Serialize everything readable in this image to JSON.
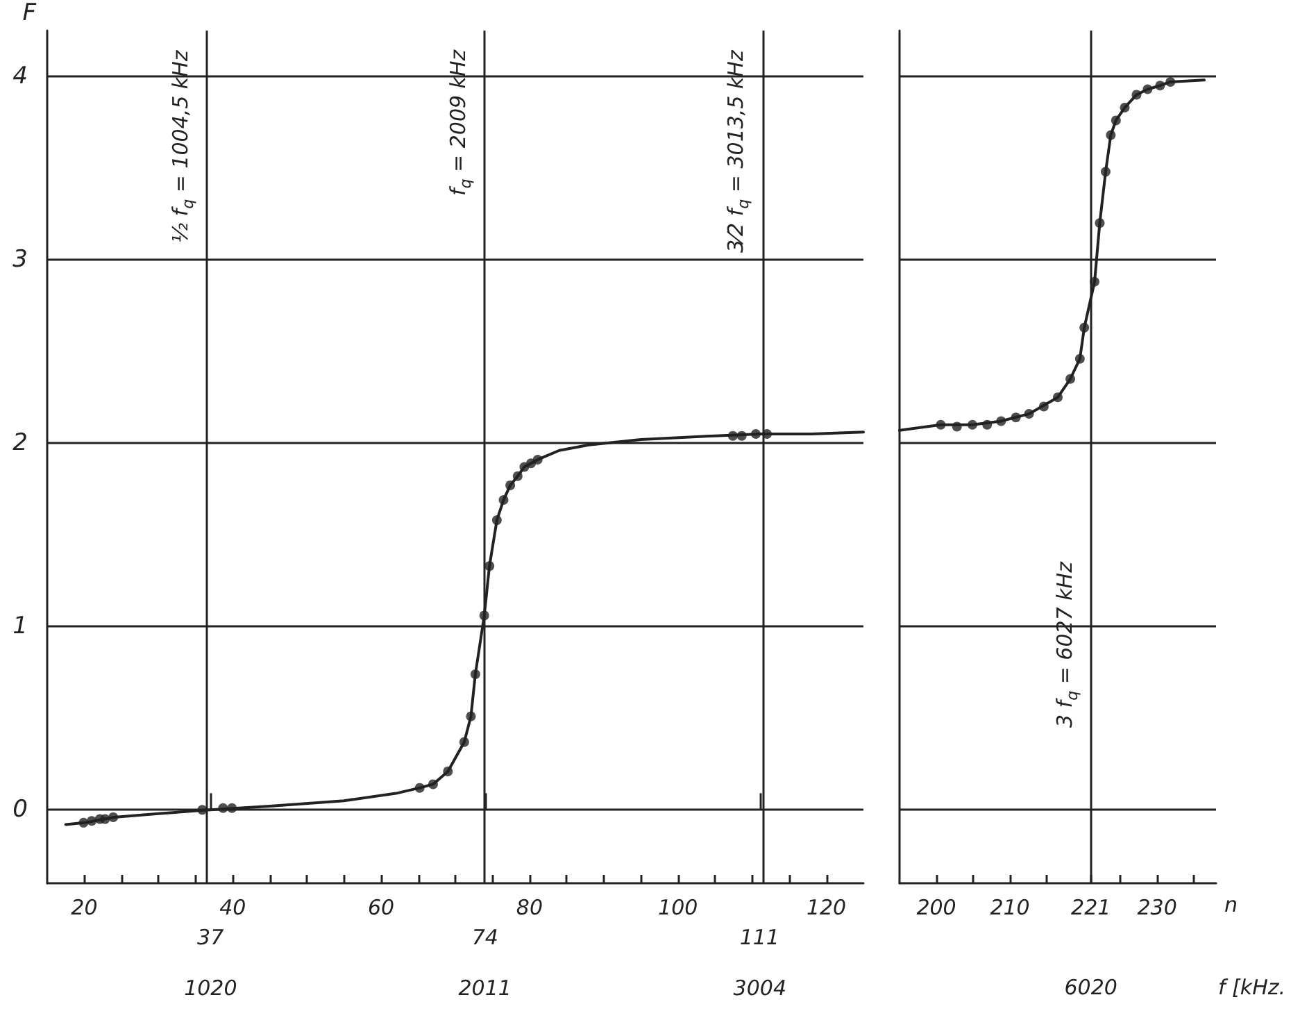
{
  "chart_data": [
    {
      "type": "line",
      "ylabel": "F",
      "xlim": [
        15,
        125
      ],
      "ylim": [
        -0.4,
        4.25
      ],
      "xticks": [
        20,
        {
          "value": 25,
          "label": null
        },
        {
          "value": 30,
          "label": null
        },
        {
          "value": 35,
          "label": null
        },
        40,
        {
          "value": 45,
          "label": null
        },
        {
          "value": 50,
          "label": null
        },
        {
          "value": 55,
          "label": null
        },
        60,
        {
          "value": 65,
          "label": null
        },
        {
          "value": 70,
          "label": null
        },
        {
          "value": 75,
          "label": null
        },
        80,
        {
          "value": 85,
          "label": null
        },
        {
          "value": 90,
          "label": null
        },
        {
          "value": 95,
          "label": null
        },
        100,
        {
          "value": 105,
          "label": null
        },
        {
          "value": 110,
          "label": null
        },
        {
          "value": 115,
          "label": null
        },
        120
      ],
      "x2lim": [
        430,
        3378
      ],
      "x2ticks": [
        1020,
        2011,
        3004
      ],
      "yticks": [
        0,
        1,
        2,
        3,
        4
      ],
      "grid": "y",
      "marker": "circle",
      "annotations": [
        {
          "text": "37",
          "x": 37,
          "y": -0.4
        },
        {
          "text": "74",
          "x": 74,
          "y": -0.4
        },
        {
          "text": "111",
          "x": 111,
          "y": -0.4
        }
      ],
      "ref_lines": [
        {
          "axis": "x2",
          "value": 1004.5,
          "label": "½ f$_{q}$ = 1004,5 kHz"
        },
        {
          "axis": "x2",
          "value": 2009,
          "label": "f$_{q}$ = 2009 kHz"
        },
        {
          "axis": "x2",
          "value": 3013.5,
          "label": "3⁄2 f$_{q}$ = 3013,5 kHz"
        }
      ],
      "series": [
        {
          "marker": "none",
          "color": "#222222",
          "x": [
            17.5,
            20,
            24,
            30,
            37,
            45,
            55,
            62,
            65.2,
            67,
            69,
            71.2,
            72.1,
            72.7,
            73.9,
            74.6,
            75.6,
            76.5,
            77.4,
            78.4,
            79.3,
            80.2,
            81.1,
            84,
            88,
            95,
            105,
            111,
            118,
            125
          ],
          "values": [
            -0.08,
            -0.07,
            -0.04,
            -0.02,
            0,
            0.02,
            0.05,
            0.09,
            0.12,
            0.14,
            0.21,
            0.37,
            0.51,
            0.74,
            1.06,
            1.33,
            1.58,
            1.69,
            1.77,
            1.82,
            1.87,
            1.89,
            1.91,
            1.96,
            1.99,
            2.02,
            2.04,
            2.05,
            2.05,
            2.06
          ]
        },
        {
          "type": "scatter",
          "color": "#222222",
          "x": [
            19.9,
            21.0,
            22.1,
            22.8,
            23.9,
            35.9,
            38.7,
            39.9,
            65.2,
            67,
            69,
            71.2,
            72.1,
            72.7,
            73.9,
            74.6,
            75.6,
            76.5,
            77.4,
            78.4,
            79.3,
            80.2,
            81.1,
            107.4,
            108.6,
            110.5,
            112.0
          ],
          "values": [
            -0.07,
            -0.06,
            -0.05,
            -0.05,
            -0.04,
            0,
            0.01,
            0.01,
            0.12,
            0.14,
            0.21,
            0.37,
            0.51,
            0.74,
            1.06,
            1.33,
            1.58,
            1.69,
            1.77,
            1.82,
            1.87,
            1.89,
            1.91,
            2.04,
            2.04,
            2.05,
            2.05
          ]
        }
      ]
    },
    {
      "type": "line",
      "xlabel": "n",
      "xlim": [
        195,
        238
      ],
      "ylim": [
        -0.4,
        4.25
      ],
      "xticks": [
        200,
        {
          "value": 205,
          "label": null
        },
        210,
        {
          "value": 215,
          "label": null
        },
        221,
        {
          "value": 225,
          "label": null
        },
        230,
        {
          "value": 235,
          "label": null
        }
      ],
      "annotations": [
        {
          "text": "3 f$_{q}$ = 6027 kHz",
          "x": 221,
          "y": 0.9
        },
        "6020",
        "f [kHz."
      ],
      "yticks": [
        0,
        1,
        2,
        3,
        4
      ],
      "grid": "y",
      "marker": "circle",
      "tick_labels": "x",
      "ref_lines": [
        {
          "axis": "x",
          "value": 221
        }
      ],
      "series": [
        {
          "marker": "none",
          "color": "#222222",
          "x": [
            195,
            200.6,
            204.9,
            208.8,
            212.6,
            216.5,
            218.2,
            219.5,
            220.1,
            221.5,
            222.2,
            223.0,
            223.7,
            224.4,
            225.6,
            227.2,
            228.7,
            230.4,
            231.8,
            236.4
          ],
          "values": [
            2.07,
            2.1,
            2.1,
            2.12,
            2.16,
            2.25,
            2.35,
            2.46,
            2.63,
            2.88,
            3.2,
            3.48,
            3.68,
            3.76,
            3.83,
            3.9,
            3.93,
            3.95,
            3.97,
            3.98
          ]
        },
        {
          "type": "scatter",
          "color": "#222222",
          "x": [
            200.6,
            202.8,
            204.9,
            206.9,
            208.8,
            210.8,
            212.6,
            214.6,
            216.5,
            218.2,
            219.5,
            220.1,
            221.5,
            222.2,
            223.0,
            223.7,
            224.4,
            225.6,
            227.2,
            228.7,
            230.4,
            231.8
          ],
          "values": [
            2.1,
            2.09,
            2.1,
            2.1,
            2.12,
            2.14,
            2.16,
            2.2,
            2.25,
            2.35,
            2.46,
            2.63,
            2.88,
            3.2,
            3.48,
            3.68,
            3.76,
            3.83,
            3.9,
            3.93,
            3.95,
            3.97
          ]
        }
      ]
    }
  ]
}
